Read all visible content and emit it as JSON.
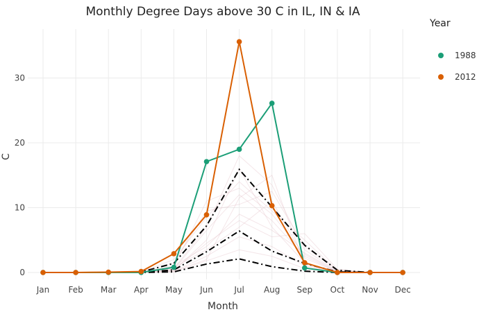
{
  "chart_data": {
    "type": "line",
    "title": "Monthly Degree Days above 30 C in IL, IN & IA",
    "xlabel": "Month",
    "ylabel": "C",
    "categories": [
      "Jan",
      "Feb",
      "Mar",
      "Apr",
      "May",
      "Jun",
      "Jul",
      "Aug",
      "Sep",
      "Oct",
      "Nov",
      "Dec"
    ],
    "ylim": [
      -1,
      37
    ],
    "yticks": [
      0,
      10,
      20,
      30
    ],
    "grid": true,
    "legend": {
      "title": "Year",
      "position": "right"
    },
    "series": [
      {
        "name": "1988",
        "color": "#1b9e77",
        "values": [
          0,
          0,
          0,
          0,
          0.8,
          17.1,
          19.0,
          26.1,
          0.7,
          0,
          0,
          0
        ]
      },
      {
        "name": "2012",
        "color": "#d95f02",
        "values": [
          0,
          0,
          0.05,
          0.15,
          2.9,
          8.9,
          35.6,
          10.3,
          1.5,
          0,
          0,
          0
        ]
      }
    ],
    "reference_lines": [
      {
        "style": "dash-dot",
        "color": "#000000",
        "values": [
          0,
          0,
          0,
          0.1,
          1.4,
          7.2,
          15.9,
          10.1,
          4.2,
          0.35,
          0,
          0
        ]
      },
      {
        "style": "dash-dot",
        "color": "#000000",
        "values": [
          0,
          0,
          0,
          0,
          0.4,
          3.2,
          6.4,
          3.3,
          1.4,
          0.1,
          0,
          0
        ]
      },
      {
        "style": "dash-dot",
        "color": "#000000",
        "values": [
          0,
          0,
          0,
          0,
          0.1,
          1.3,
          2.1,
          0.9,
          0.2,
          0,
          0,
          0
        ]
      }
    ],
    "background_series": [
      [
        0,
        0,
        0,
        0,
        0.5,
        6.5,
        12.0,
        8.0,
        2.5,
        0.1,
        0,
        0
      ],
      [
        0,
        0,
        0,
        0.1,
        1.0,
        4.0,
        9.0,
        6.5,
        3.0,
        0.2,
        0,
        0
      ],
      [
        0,
        0,
        0,
        0,
        0.2,
        2.5,
        5.5,
        4.0,
        1.0,
        0,
        0,
        0
      ],
      [
        0,
        0,
        0,
        0.1,
        2.0,
        8.5,
        14.0,
        9.5,
        5.0,
        0.3,
        0,
        0
      ],
      [
        0,
        0,
        0,
        0,
        0.8,
        3.5,
        7.0,
        11.0,
        2.2,
        0.1,
        0,
        0
      ],
      [
        0,
        0,
        0,
        0,
        0.3,
        5.0,
        16.0,
        7.0,
        1.5,
        0,
        0,
        0
      ],
      [
        0,
        0,
        0,
        0.05,
        1.5,
        9.5,
        10.5,
        12.5,
        4.0,
        0.4,
        0,
        0
      ],
      [
        0,
        0,
        0,
        0,
        0.1,
        1.8,
        3.5,
        2.5,
        0.6,
        0,
        0,
        0
      ],
      [
        0,
        0,
        0,
        0,
        0.6,
        7.0,
        18.0,
        13.5,
        3.5,
        0.2,
        0,
        0
      ],
      [
        0,
        0,
        0,
        0,
        0.4,
        4.5,
        8.0,
        5.5,
        6.0,
        0.5,
        0,
        0
      ],
      [
        0,
        0,
        0,
        0,
        0.9,
        11.0,
        13.0,
        9.0,
        2.8,
        0.1,
        0,
        0
      ],
      [
        0,
        0,
        0,
        0.1,
        0.2,
        2.0,
        11.5,
        15.0,
        1.2,
        0,
        0,
        0
      ]
    ]
  }
}
